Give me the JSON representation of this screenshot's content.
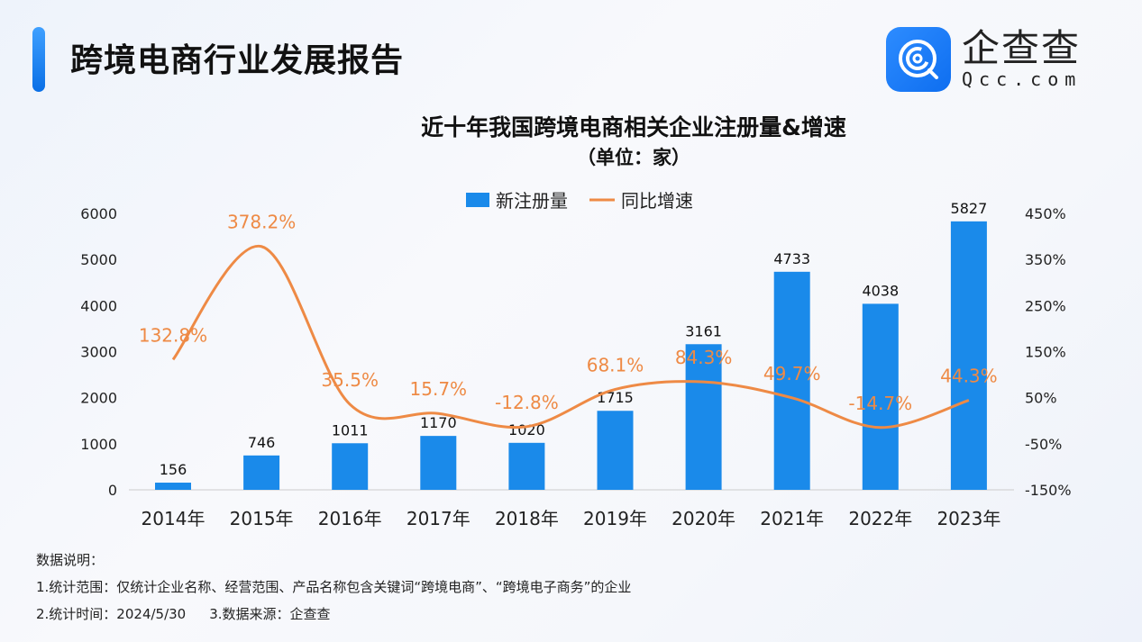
{
  "header": {
    "title": "跨境电商行业发展报告"
  },
  "logo": {
    "cn": "企查查",
    "en": "Qcc.com"
  },
  "chart_data": {
    "type": "bar+line",
    "title": "近十年我国跨境电商相关企业注册量&增速",
    "subtitle": "（单位：家）",
    "categories": [
      "2014年",
      "2015年",
      "2016年",
      "2017年",
      "2018年",
      "2019年",
      "2020年",
      "2021年",
      "2022年",
      "2023年"
    ],
    "series": [
      {
        "name": "新注册量",
        "type": "bar",
        "axis": "left",
        "color": "#1a8aea",
        "values": [
          156,
          746,
          1011,
          1170,
          1020,
          1715,
          3161,
          4733,
          4038,
          5827
        ],
        "labels": [
          "156",
          "746",
          "1011",
          "1170",
          "1020",
          "1715",
          "3161",
          "4733",
          "4038",
          "5827"
        ]
      },
      {
        "name": "同比增速",
        "type": "line",
        "axis": "right",
        "color": "#ee8a45",
        "values": [
          132.8,
          378.2,
          35.5,
          15.7,
          -12.8,
          68.1,
          84.3,
          49.7,
          -14.7,
          44.3
        ],
        "labels": [
          "132.8%",
          "378.2%",
          "35.5%",
          "15.7%",
          "-12.8%",
          "68.1%",
          "84.3%",
          "49.7%",
          "-14.7%",
          "44.3%"
        ]
      }
    ],
    "left_axis": {
      "ylim": [
        0,
        6000
      ],
      "ticks": [
        "0",
        "1000",
        "2000",
        "3000",
        "4000",
        "5000",
        "6000"
      ]
    },
    "right_axis": {
      "ylim": [
        -150,
        450
      ],
      "ticks": [
        "-150%",
        "-50%",
        "50%",
        "150%",
        "250%",
        "350%",
        "450%"
      ]
    },
    "legend": "top-center",
    "grid": false
  },
  "notes": {
    "heading": "数据说明：",
    "line1": "1.统计范围：仅统计企业名称、经营范围、产品名称包含关键词“跨境电商”、“跨境电子商务”的企业",
    "line2a": "2.统计时间：2024/5/30",
    "line2b": "3.数据来源：企查查"
  }
}
